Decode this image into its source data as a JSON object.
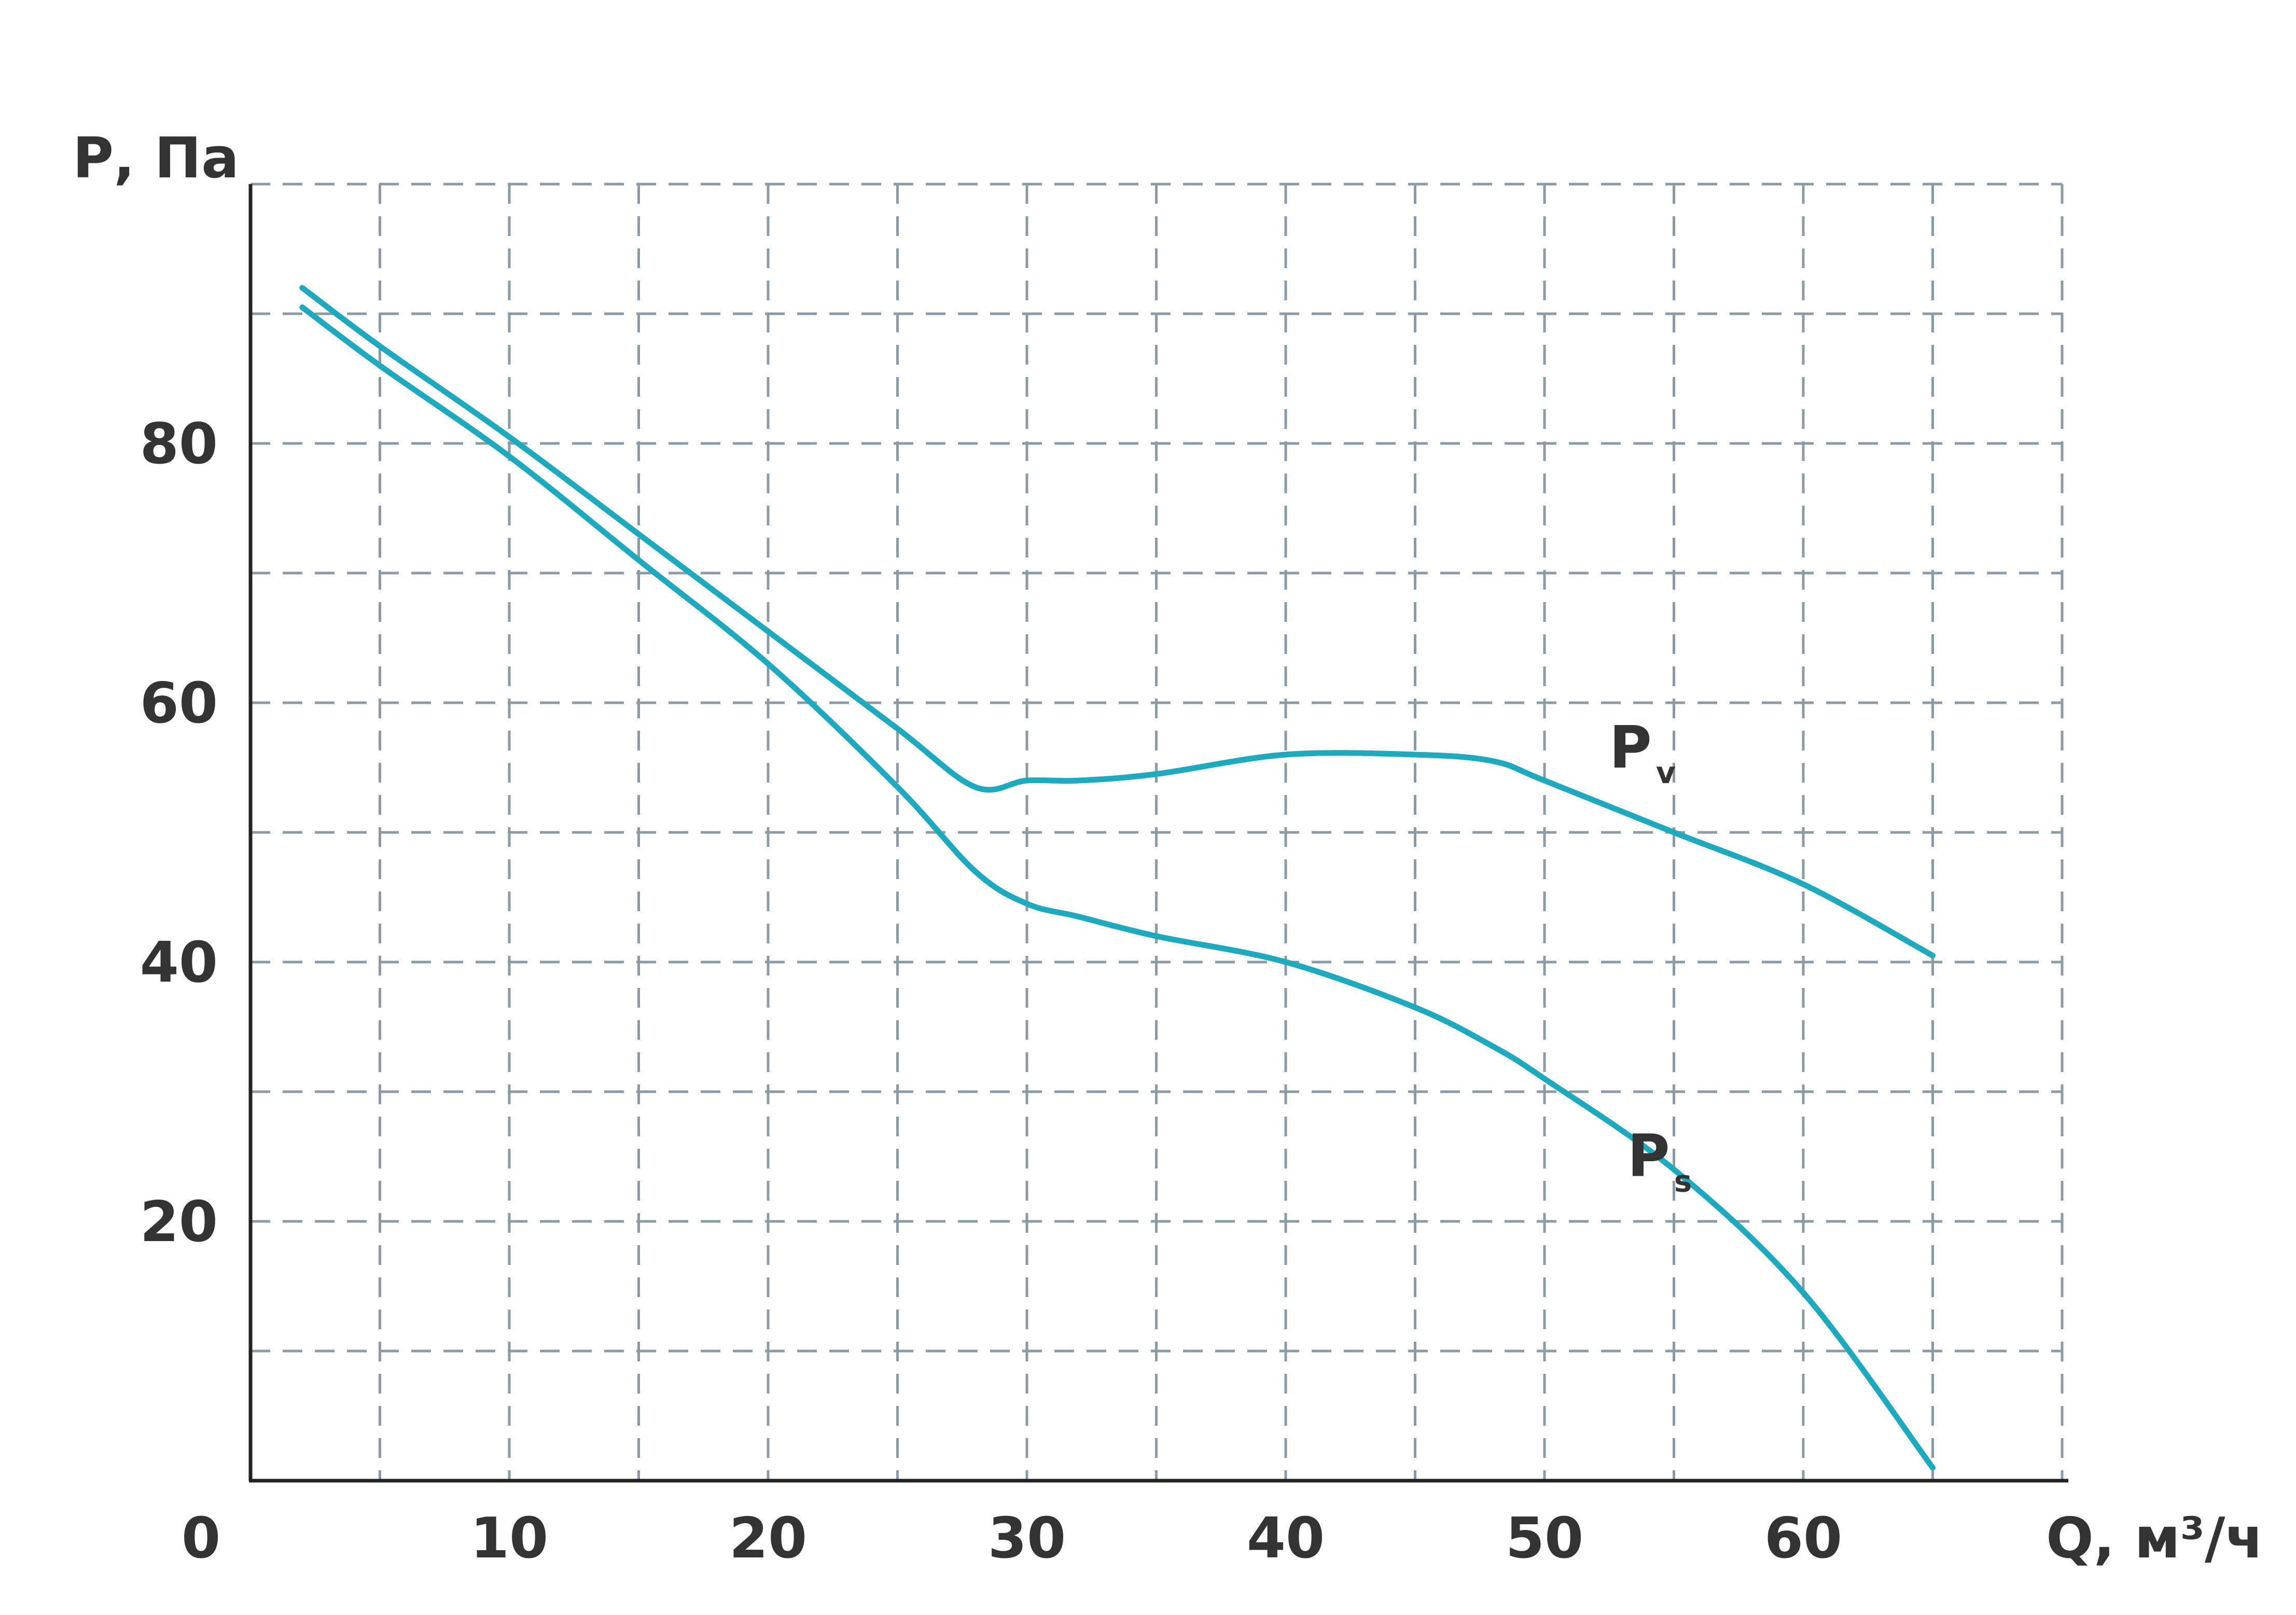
{
  "chart_data": {
    "type": "line",
    "title": "",
    "xlabel": "Q, м³/ч",
    "ylabel": "Р, Па",
    "origin_label": "0",
    "xlim": [
      0,
      70
    ],
    "ylim": [
      0,
      100
    ],
    "x_ticks": [
      10,
      20,
      30,
      40,
      50,
      60
    ],
    "y_ticks": [
      20,
      40,
      60,
      80
    ],
    "x_minor_grid": [
      5,
      15,
      25,
      35,
      45,
      55,
      65
    ],
    "y_minor_grid": [
      10,
      30,
      50,
      70,
      90,
      100
    ],
    "grid": true,
    "line_color": "#1fa9bf",
    "series": [
      {
        "name": "Pv",
        "label_main": "P",
        "label_sub": "v",
        "label_at": [
          52.5,
          55
        ],
        "x": [
          2,
          5,
          10,
          15,
          20,
          25,
          28,
          30,
          32,
          35,
          40,
          45,
          48,
          50,
          55,
          60,
          65
        ],
        "y": [
          92,
          87.5,
          80.5,
          73,
          65.5,
          58,
          53.5,
          54,
          54,
          54.5,
          56,
          56,
          55.5,
          54,
          50,
          46,
          40.5
        ]
      },
      {
        "name": "Ps",
        "label_main": "P",
        "label_sub": "s",
        "label_at": [
          53.2,
          23.5
        ],
        "x": [
          2,
          5,
          10,
          15,
          20,
          25,
          28,
          30,
          32,
          35,
          40,
          45,
          48,
          50,
          55,
          60,
          65
        ],
        "y": [
          90.5,
          86,
          79,
          71,
          63,
          53.5,
          47,
          44.5,
          43.5,
          42,
          40,
          36.5,
          33.5,
          31,
          24,
          14.5,
          1
        ]
      }
    ]
  }
}
